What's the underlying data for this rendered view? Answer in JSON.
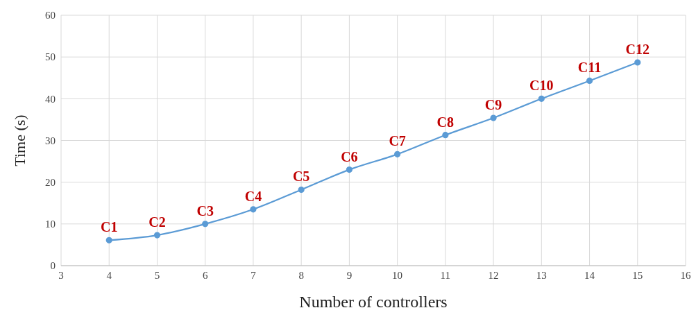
{
  "chart_data": {
    "type": "line",
    "xlabel": "Number of controllers",
    "ylabel": "Time (s)",
    "x": [
      4,
      5,
      6,
      7,
      8,
      9,
      10,
      11,
      12,
      13,
      14,
      15
    ],
    "series": [
      {
        "color": "#5b9bd5",
        "values": [
          6.1,
          7.3,
          10,
          13.5,
          18.2,
          23,
          26.7,
          31.3,
          35.4,
          40,
          44.3,
          48.7
        ]
      }
    ],
    "xlim": [
      3,
      16
    ],
    "xticks": [
      3,
      4,
      5,
      6,
      7,
      8,
      9,
      10,
      11,
      12,
      13,
      14,
      15,
      16
    ],
    "ylim": [
      0,
      60
    ],
    "yticks": [
      0,
      10,
      20,
      30,
      40,
      50,
      60
    ],
    "grid": true,
    "marker": "circle",
    "line_style": "solid",
    "legend": false,
    "annotations": [
      {
        "text": "C1",
        "x": 4,
        "y": 6.1
      },
      {
        "text": "C2",
        "x": 5,
        "y": 7.3
      },
      {
        "text": "C3",
        "x": 6,
        "y": 10
      },
      {
        "text": "C4",
        "x": 7,
        "y": 13.5
      },
      {
        "text": "C5",
        "x": 8,
        "y": 18.2
      },
      {
        "text": "C6",
        "x": 9,
        "y": 23
      },
      {
        "text": "C7",
        "x": 10,
        "y": 26.7
      },
      {
        "text": "C8",
        "x": 11,
        "y": 31.3
      },
      {
        "text": "C9",
        "x": 12,
        "y": 35.4
      },
      {
        "text": "C10",
        "x": 13,
        "y": 40
      },
      {
        "text": "C11",
        "x": 14,
        "y": 44.3
      },
      {
        "text": "C12",
        "x": 15,
        "y": 48.7
      }
    ]
  }
}
